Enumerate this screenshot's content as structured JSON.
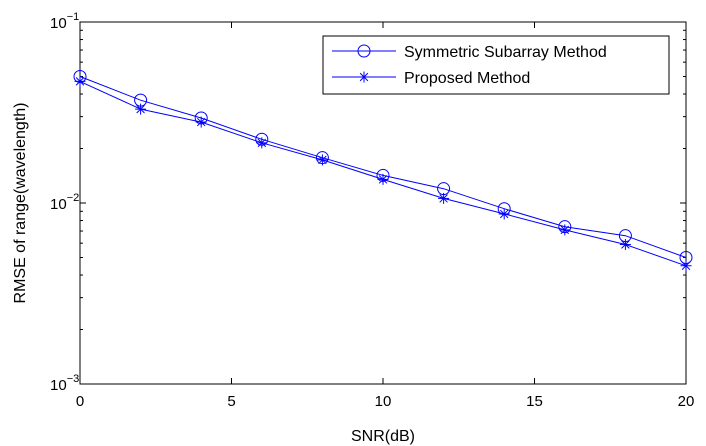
{
  "chart_data": {
    "type": "line",
    "title": "",
    "xlabel": "SNR(dB)",
    "ylabel": "RMSE of range(wavelength)",
    "x": [
      0,
      2,
      4,
      6,
      8,
      10,
      12,
      14,
      16,
      18,
      20
    ],
    "xlim": [
      0,
      20
    ],
    "xticks": [
      "0",
      "5",
      "10",
      "15",
      "20"
    ],
    "xtick_values": [
      0,
      5,
      10,
      15,
      20
    ],
    "yscale": "log",
    "ylim": [
      0.001,
      0.1
    ],
    "yticks": [
      {
        "value": 0.1,
        "base": "10",
        "exponent": "−1"
      },
      {
        "value": 0.01,
        "base": "10",
        "exponent": "−2"
      },
      {
        "value": 0.001,
        "base": "10",
        "exponent": "−3"
      }
    ],
    "grid": false,
    "legend_position": "top-right",
    "series": [
      {
        "name": "Symmetric Subarray Method",
        "marker": "circle",
        "color": "#0000ff",
        "values": [
          0.05,
          0.037,
          0.0295,
          0.0225,
          0.0178,
          0.0142,
          0.012,
          0.0093,
          0.0074,
          0.0066,
          0.005
        ]
      },
      {
        "name": "Proposed Method",
        "marker": "asterisk",
        "color": "#0000ff",
        "values": [
          0.047,
          0.033,
          0.028,
          0.0215,
          0.0173,
          0.0135,
          0.0106,
          0.0087,
          0.0071,
          0.0059,
          0.0045
        ]
      }
    ]
  }
}
